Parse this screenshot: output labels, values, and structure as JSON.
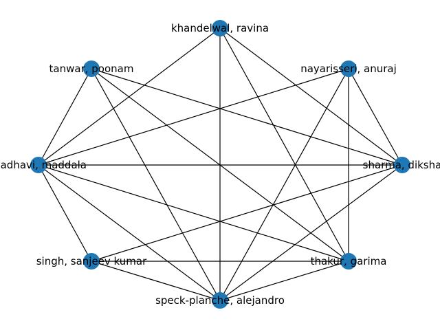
{
  "graph": {
    "node_color": "#1f77b4",
    "edge_color": "#000000",
    "nodes": [
      {
        "id": "khandelwal",
        "label": "khandelwal, ravina"
      },
      {
        "id": "nayarisseri",
        "label": "nayarisseri, anuraj"
      },
      {
        "id": "sharma",
        "label": "sharma, diksha"
      },
      {
        "id": "thakur",
        "label": "thakur, garima"
      },
      {
        "id": "speck",
        "label": "speck-planche, alejandro"
      },
      {
        "id": "singh",
        "label": "singh, sanjeev kumar"
      },
      {
        "id": "madhavi",
        "label": "madhavi, maddala"
      },
      {
        "id": "tanwar",
        "label": "tanwar, poonam"
      }
    ],
    "edges": [
      [
        "khandelwal",
        "madhavi"
      ],
      [
        "khandelwal",
        "speck"
      ],
      [
        "khandelwal",
        "thakur"
      ],
      [
        "khandelwal",
        "sharma"
      ],
      [
        "tanwar",
        "madhavi"
      ],
      [
        "tanwar",
        "sharma"
      ],
      [
        "tanwar",
        "thakur"
      ],
      [
        "tanwar",
        "speck"
      ],
      [
        "nayarisseri",
        "madhavi"
      ],
      [
        "nayarisseri",
        "sharma"
      ],
      [
        "nayarisseri",
        "thakur"
      ],
      [
        "nayarisseri",
        "speck"
      ],
      [
        "madhavi",
        "sharma"
      ],
      [
        "madhavi",
        "singh"
      ],
      [
        "madhavi",
        "speck"
      ],
      [
        "madhavi",
        "thakur"
      ],
      [
        "sharma",
        "singh"
      ],
      [
        "sharma",
        "speck"
      ],
      [
        "singh",
        "thakur"
      ],
      [
        "singh",
        "speck"
      ],
      [
        "speck",
        "thakur"
      ]
    ]
  }
}
